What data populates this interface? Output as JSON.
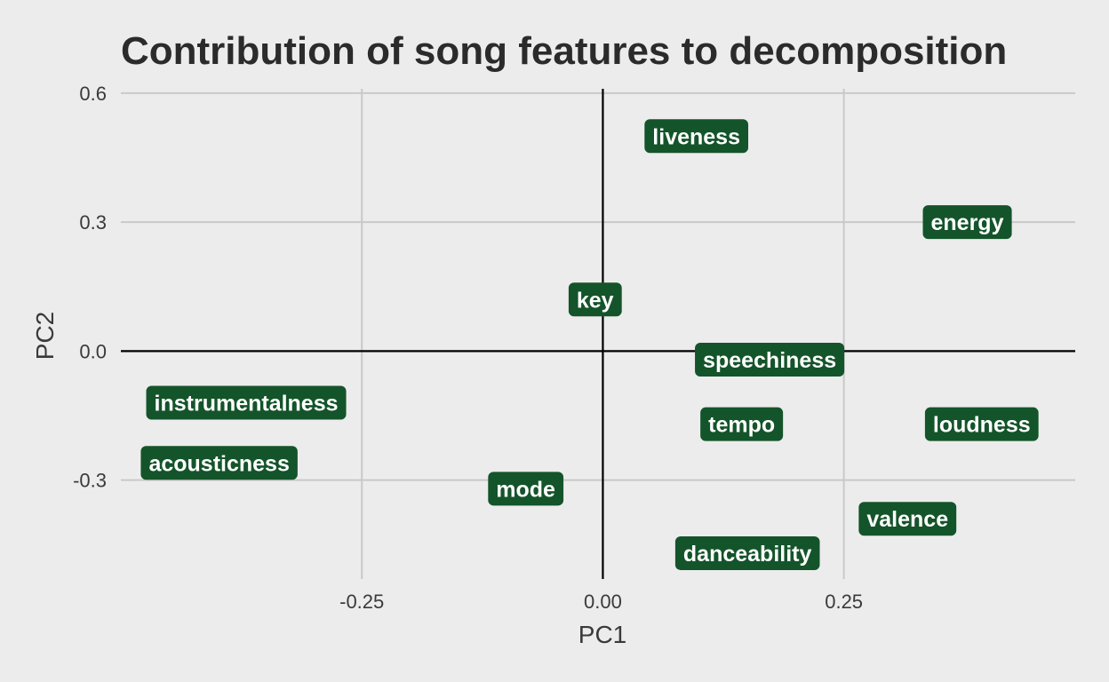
{
  "chart_data": {
    "type": "scatter",
    "title": "Contribution of song features to decomposition",
    "xlabel": "PC1",
    "ylabel": "PC2",
    "xlim": [
      -0.5,
      0.49
    ],
    "ylim": [
      -0.53,
      0.61
    ],
    "xticks": [
      -0.25,
      0.0,
      0.25
    ],
    "xtick_labels": [
      "-0.25",
      "0.00",
      "0.25"
    ],
    "yticks": [
      -0.3,
      0.0,
      0.3,
      0.6
    ],
    "ytick_labels": [
      "-0.3",
      "0.0",
      "0.3",
      "0.6"
    ],
    "grid": true,
    "reference_lines": {
      "x": 0,
      "y": 0
    },
    "label_fill": "#14542a",
    "label_text_color": "#ffffff",
    "points": [
      {
        "label": "liveness",
        "x": 0.097,
        "y": 0.5
      },
      {
        "label": "energy",
        "x": 0.378,
        "y": 0.3
      },
      {
        "label": "key",
        "x": -0.008,
        "y": 0.12
      },
      {
        "label": "speechiness",
        "x": 0.173,
        "y": -0.02
      },
      {
        "label": "instrumentalness",
        "x": -0.37,
        "y": -0.12
      },
      {
        "label": "tempo",
        "x": 0.144,
        "y": -0.17
      },
      {
        "label": "loudness",
        "x": 0.393,
        "y": -0.17
      },
      {
        "label": "acousticness",
        "x": -0.398,
        "y": -0.26
      },
      {
        "label": "mode",
        "x": -0.08,
        "y": -0.32
      },
      {
        "label": "valence",
        "x": 0.316,
        "y": -0.39
      },
      {
        "label": "danceability",
        "x": 0.15,
        "y": -0.47
      }
    ]
  }
}
